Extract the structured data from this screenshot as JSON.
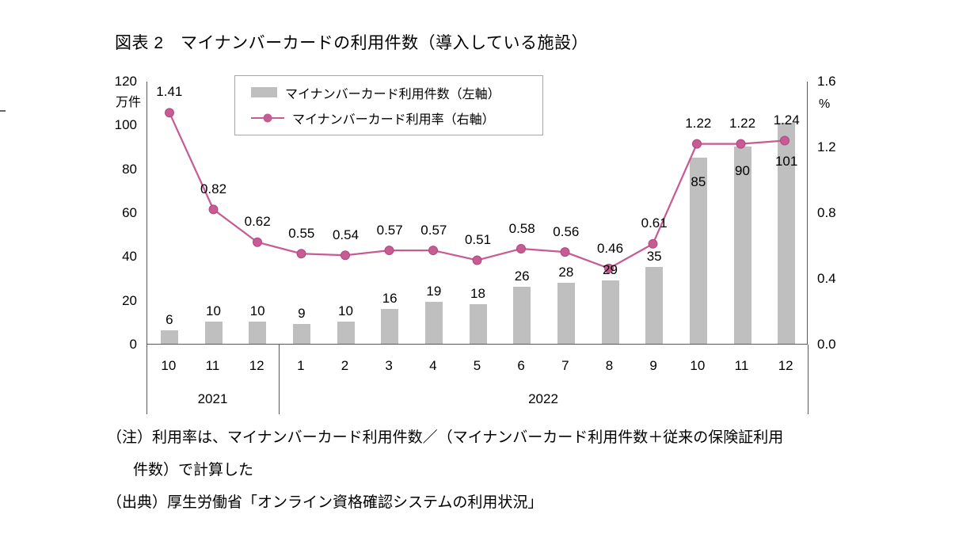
{
  "title": "図表 2　マイナンバーカードの利用件数（導入している施設）",
  "chart_data": {
    "type": "combo",
    "categories": [
      "10",
      "11",
      "12",
      "1",
      "2",
      "3",
      "4",
      "5",
      "6",
      "7",
      "8",
      "9",
      "10",
      "11",
      "12"
    ],
    "year_groups": [
      {
        "label": "2021",
        "span": 3
      },
      {
        "label": "2022",
        "span": 12
      }
    ],
    "left_axis": {
      "unit": "万件",
      "min": 0,
      "max": 120,
      "ticks": [
        0,
        20,
        40,
        60,
        80,
        100,
        120
      ]
    },
    "right_axis": {
      "unit": "%",
      "min": 0,
      "max": 1.6,
      "ticks": [
        "0.0",
        "0.4",
        "0.8",
        "1.2",
        "1.6"
      ]
    },
    "series": [
      {
        "name": "マイナンバーカード利用件数（左軸）",
        "type": "bar",
        "axis": "left",
        "color": "#bfbfbf",
        "values": [
          6,
          10,
          10,
          9,
          10,
          16,
          19,
          18,
          26,
          28,
          29,
          35,
          85,
          90,
          101
        ]
      },
      {
        "name": "マイナンバーカード利用率（右軸）",
        "type": "line",
        "axis": "right",
        "color": "#c75b93",
        "values": [
          1.41,
          0.82,
          0.62,
          0.55,
          0.54,
          0.57,
          0.57,
          0.51,
          0.58,
          0.56,
          0.46,
          0.61,
          1.22,
          1.22,
          1.24
        ]
      }
    ]
  },
  "notes": {
    "note_line1": "（注）利用率は、マイナンバーカード利用件数／（マイナンバーカード利用件数＋従来の保険証利用",
    "note_line2": "件数）で計算した",
    "source": "（出典）厚生労働省「オンライン資格確認システムの利用状況」"
  }
}
